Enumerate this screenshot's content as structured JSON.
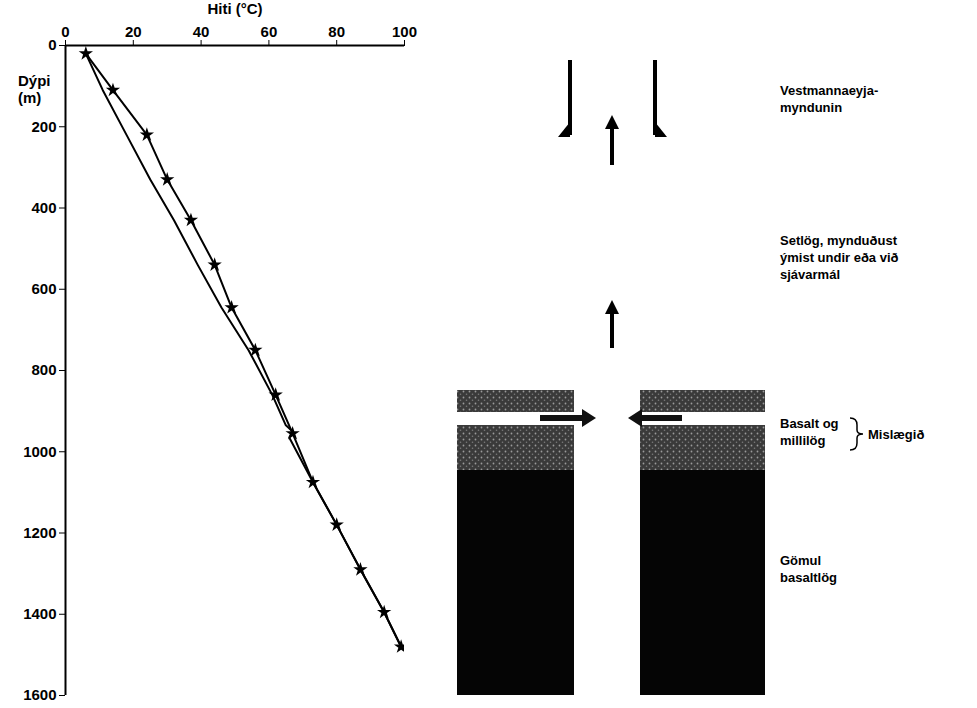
{
  "chart_data": {
    "type": "line",
    "xlabel": "Hiti (°C)",
    "ylabel": "Dýpi (m)",
    "xlim": [
      0,
      100
    ],
    "xticks": [
      0,
      20,
      40,
      60,
      80,
      100
    ],
    "ylim": [
      0,
      1600
    ],
    "yticks": [
      0,
      200,
      400,
      600,
      800,
      1000,
      1200,
      1400,
      1600
    ],
    "grid": false,
    "series": [
      {
        "color": "#000000",
        "marker": "star",
        "line_style": "solid",
        "x": [
          6,
          14,
          24,
          30,
          37,
          44,
          49,
          56,
          62,
          67,
          73,
          80,
          87,
          94,
          99
        ],
        "y": [
          20,
          110,
          220,
          330,
          430,
          540,
          645,
          750,
          860,
          955,
          1075,
          1180,
          1290,
          1395,
          1480
        ]
      },
      {
        "color": "#000000",
        "line_style": "solid",
        "x": [
          6,
          11,
          18,
          25,
          32,
          39,
          46,
          54,
          61,
          65,
          67,
          66,
          73,
          80,
          87,
          94,
          99
        ],
        "y": [
          20,
          110,
          220,
          330,
          430,
          540,
          645,
          750,
          860,
          935,
          950,
          965,
          1075,
          1180,
          1290,
          1395,
          1480
        ]
      }
    ]
  },
  "diagram": {
    "layers": [
      {
        "lines": [
          "Vestmannaeyja-",
          "myndunin"
        ]
      },
      {
        "lines": [
          "Setlög, mynduðust",
          "ýmist undir eða við",
          "sjávarmál"
        ]
      },
      {
        "lines": [
          "Basalt og",
          "millilög"
        ]
      },
      {
        "lines": [
          "Gömul",
          "basaltlög"
        ]
      }
    ],
    "bracket_label": "Mislægið"
  }
}
